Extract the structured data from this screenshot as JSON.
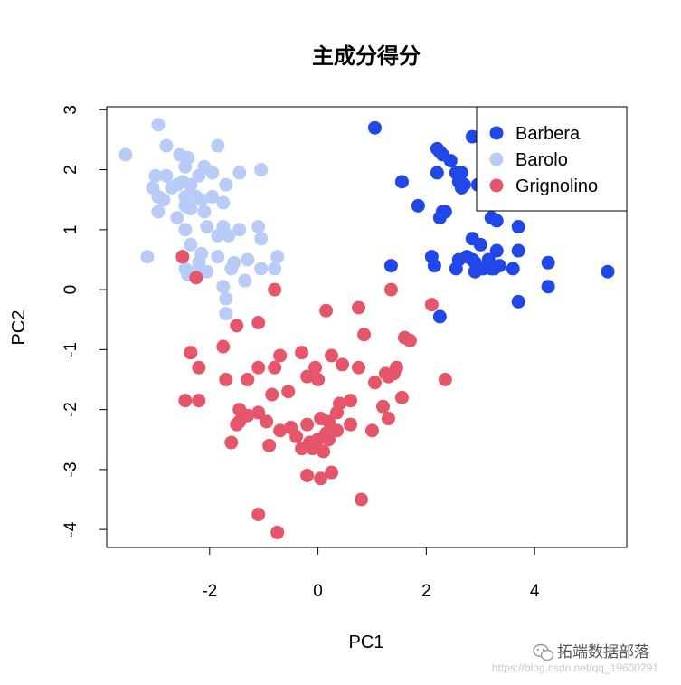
{
  "chart_data": {
    "type": "scatter",
    "title": "主成分得分",
    "xlabel": "PC1",
    "ylabel": "PC2",
    "xlim": [
      -3.9,
      5.7
    ],
    "ylim": [
      -4.3,
      3.05
    ],
    "xticks": [
      -2,
      0,
      2,
      4
    ],
    "yticks": [
      -4,
      -3,
      -2,
      -1,
      0,
      1,
      2,
      3
    ],
    "grid": false,
    "legend_position": "top-right",
    "series": [
      {
        "name": "Barbera",
        "color": "#2247e8",
        "points": [
          [
            1.05,
            2.7
          ],
          [
            2.2,
            2.35
          ],
          [
            2.25,
            2.3
          ],
          [
            2.3,
            2.25
          ],
          [
            2.85,
            2.55
          ],
          [
            3.25,
            2.55
          ],
          [
            3.15,
            2.35
          ],
          [
            3.3,
            2.0
          ],
          [
            2.2,
            1.95
          ],
          [
            2.55,
            1.95
          ],
          [
            2.65,
            1.95
          ],
          [
            2.6,
            1.8
          ],
          [
            2.65,
            1.7
          ],
          [
            2.7,
            1.75
          ],
          [
            2.95,
            1.75
          ],
          [
            1.55,
            1.8
          ],
          [
            2.45,
            2.15
          ],
          [
            1.85,
            1.4
          ],
          [
            2.35,
            1.3
          ],
          [
            2.3,
            1.3
          ],
          [
            2.25,
            1.2
          ],
          [
            3.2,
            1.2
          ],
          [
            3.3,
            1.15
          ],
          [
            3.7,
            1.05
          ],
          [
            2.85,
            0.85
          ],
          [
            3.0,
            0.75
          ],
          [
            3.3,
            0.65
          ],
          [
            3.7,
            0.65
          ],
          [
            2.1,
            0.55
          ],
          [
            2.6,
            0.5
          ],
          [
            2.75,
            0.55
          ],
          [
            2.85,
            0.5
          ],
          [
            2.9,
            0.45
          ],
          [
            3.15,
            0.5
          ],
          [
            3.05,
            0.35
          ],
          [
            3.2,
            0.35
          ],
          [
            3.25,
            0.35
          ],
          [
            3.35,
            0.4
          ],
          [
            2.15,
            0.4
          ],
          [
            2.55,
            0.35
          ],
          [
            1.35,
            0.4
          ],
          [
            2.9,
            0.3
          ],
          [
            3.6,
            0.35
          ],
          [
            4.25,
            0.45
          ],
          [
            5.35,
            0.3
          ],
          [
            4.25,
            0.05
          ],
          [
            3.7,
            -0.2
          ],
          [
            2.25,
            -0.45
          ]
        ]
      },
      {
        "name": "Barolo",
        "color": "#b9cbf7",
        "points": [
          [
            -3.55,
            2.25
          ],
          [
            -2.95,
            2.75
          ],
          [
            -2.8,
            2.4
          ],
          [
            -2.55,
            2.25
          ],
          [
            -2.4,
            2.2
          ],
          [
            -1.85,
            2.4
          ],
          [
            -2.45,
            2.05
          ],
          [
            -3.0,
            1.9
          ],
          [
            -2.8,
            1.9
          ],
          [
            -2.1,
            2.05
          ],
          [
            -1.95,
            1.95
          ],
          [
            -2.2,
            1.9
          ],
          [
            -1.45,
            1.95
          ],
          [
            -1.7,
            1.75
          ],
          [
            -2.5,
            1.8
          ],
          [
            -2.35,
            1.75
          ],
          [
            -2.6,
            1.75
          ],
          [
            -2.7,
            1.7
          ],
          [
            -3.05,
            1.7
          ],
          [
            -2.95,
            1.55
          ],
          [
            -2.85,
            1.5
          ],
          [
            -2.45,
            1.55
          ],
          [
            -2.35,
            1.6
          ],
          [
            -2.25,
            1.55
          ],
          [
            -2.15,
            1.5
          ],
          [
            -1.95,
            1.55
          ],
          [
            -1.75,
            1.45
          ],
          [
            -2.45,
            1.4
          ],
          [
            -2.35,
            1.35
          ],
          [
            -2.1,
            1.3
          ],
          [
            -2.95,
            1.3
          ],
          [
            -2.6,
            1.2
          ],
          [
            -2.45,
            1.0
          ],
          [
            -2.05,
            1.05
          ],
          [
            -1.75,
            1.05
          ],
          [
            -1.85,
            0.9
          ],
          [
            -1.65,
            0.9
          ],
          [
            -1.45,
            1.0
          ],
          [
            -1.1,
            1.05
          ],
          [
            -1.05,
            0.85
          ],
          [
            -2.35,
            0.75
          ],
          [
            -2.15,
            0.6
          ],
          [
            -1.85,
            0.55
          ],
          [
            -1.55,
            0.45
          ],
          [
            -1.3,
            0.5
          ],
          [
            -1.05,
            0.35
          ],
          [
            -0.75,
            0.55
          ],
          [
            -0.8,
            0.35
          ],
          [
            -2.2,
            0.45
          ],
          [
            -2.45,
            0.35
          ],
          [
            -3.15,
            0.55
          ],
          [
            -2.25,
            0.3
          ],
          [
            -2.05,
            0.3
          ],
          [
            -1.35,
            0.15
          ],
          [
            -1.75,
            0.05
          ],
          [
            -1.7,
            -0.15
          ],
          [
            -1.7,
            -0.4
          ],
          [
            -1.05,
            2.0
          ],
          [
            -1.6,
            0.35
          ],
          [
            -2.4,
            0.25
          ]
        ]
      },
      {
        "name": "Grignolino",
        "color": "#e5566a",
        "points": [
          [
            -2.5,
            0.55
          ],
          [
            -2.25,
            0.2
          ],
          [
            -0.8,
            0.0
          ],
          [
            1.35,
            0.0
          ],
          [
            0.15,
            -0.35
          ],
          [
            0.75,
            -0.3
          ],
          [
            2.1,
            -0.25
          ],
          [
            -1.1,
            -0.55
          ],
          [
            -1.5,
            -0.6
          ],
          [
            0.85,
            -0.75
          ],
          [
            1.6,
            -0.8
          ],
          [
            1.7,
            -0.85
          ],
          [
            -1.75,
            -0.95
          ],
          [
            -2.35,
            -1.05
          ],
          [
            -0.3,
            -1.05
          ],
          [
            -0.7,
            -1.1
          ],
          [
            0.25,
            -1.1
          ],
          [
            -2.2,
            -1.3
          ],
          [
            -1.1,
            -1.3
          ],
          [
            -0.8,
            -1.3
          ],
          [
            -0.05,
            -1.3
          ],
          [
            0.45,
            -1.25
          ],
          [
            0.75,
            -1.3
          ],
          [
            1.45,
            -1.3
          ],
          [
            1.4,
            -1.4
          ],
          [
            1.3,
            -1.45
          ],
          [
            1.25,
            -1.4
          ],
          [
            -1.7,
            -1.5
          ],
          [
            -1.3,
            -1.5
          ],
          [
            -0.2,
            -1.45
          ],
          [
            0.0,
            -1.5
          ],
          [
            1.05,
            -1.55
          ],
          [
            2.35,
            -1.5
          ],
          [
            -2.45,
            -1.85
          ],
          [
            -2.2,
            -1.85
          ],
          [
            -0.85,
            -1.75
          ],
          [
            -0.55,
            -1.7
          ],
          [
            1.55,
            -1.8
          ],
          [
            0.4,
            -1.9
          ],
          [
            0.6,
            -1.85
          ],
          [
            1.2,
            -1.95
          ],
          [
            -1.45,
            -2.0
          ],
          [
            -1.3,
            -2.1
          ],
          [
            -1.45,
            -2.2
          ],
          [
            0.35,
            -2.05
          ],
          [
            0.05,
            -2.15
          ],
          [
            0.2,
            -2.2
          ],
          [
            -0.2,
            -2.25
          ],
          [
            0.6,
            -2.25
          ],
          [
            -0.5,
            -2.3
          ],
          [
            1.3,
            -2.15
          ],
          [
            -1.1,
            -2.05
          ],
          [
            -0.95,
            -2.2
          ],
          [
            -1.5,
            -2.25
          ],
          [
            -0.7,
            -2.35
          ],
          [
            0.15,
            -2.4
          ],
          [
            0.35,
            -2.35
          ],
          [
            -0.4,
            -2.45
          ],
          [
            1.0,
            -2.35
          ],
          [
            -0.15,
            -2.55
          ],
          [
            0.0,
            -2.5
          ],
          [
            0.2,
            -2.5
          ],
          [
            -1.6,
            -2.55
          ],
          [
            -0.9,
            -2.6
          ],
          [
            -0.3,
            -2.65
          ],
          [
            -0.1,
            -2.65
          ],
          [
            0.1,
            -2.7
          ],
          [
            -0.2,
            -3.1
          ],
          [
            0.05,
            -3.15
          ],
          [
            0.25,
            -3.05
          ],
          [
            0.8,
            -3.5
          ],
          [
            -1.1,
            -3.75
          ],
          [
            -0.75,
            -4.05
          ]
        ]
      }
    ]
  },
  "watermark": {
    "brand": "拓端数据部落",
    "url": "https://blog.csdn.net/qq_19600291"
  }
}
